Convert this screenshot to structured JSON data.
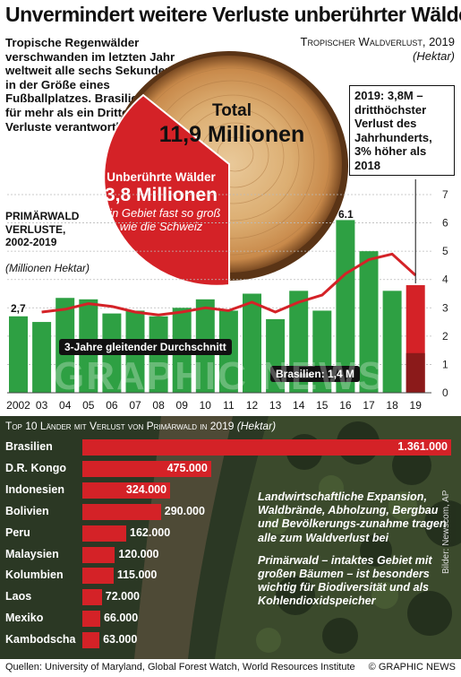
{
  "headline": "Unvermindert weitere Verluste unberührter Wälder",
  "intro": "Tropische Regenwälder verschwanden im letzten Jahr weltweit alle sechs Sekunden in der Größe eines Fußballplatzes. Brasilien war für mehr als ein Drittel der Verluste verantwortlich",
  "tropical_loss": {
    "title": "Tropischer Waldverlust, 2019",
    "unit": "(Hektar)",
    "total_label": "Total",
    "total_value": "11,9 Millionen",
    "primary_label": "Unberührte Wälder",
    "primary_value": "3,8 Millionen",
    "primary_note": "Ein Gebiet fast so groß wie die Schweiz"
  },
  "annotation_2019": "2019: 3,8M – dritthöchster Verlust des Jahrhunderts, 3% höher als 2018",
  "primary_loss_chart": {
    "title": "PRIMÄRWALD VERLUSTE, 2002-2019",
    "unit": "(Millionen Hektar)",
    "moving_avg_label": "3-Jahre gleitender Durchschnitt",
    "brazil_label": "Brasilien: 1,4 M",
    "first_value_label": "2,7",
    "peak_value_label": "6.1"
  },
  "chart_data": [
    {
      "type": "bar",
      "categories": [
        "2002",
        "03",
        "04",
        "05",
        "06",
        "07",
        "08",
        "09",
        "10",
        "11",
        "12",
        "13",
        "14",
        "15",
        "16",
        "17",
        "18",
        "19"
      ],
      "series": [
        {
          "name": "Primärwald Verluste",
          "values": [
            2.7,
            2.5,
            3.35,
            3.3,
            2.8,
            2.9,
            2.7,
            3.0,
            3.3,
            2.9,
            3.5,
            2.6,
            3.6,
            2.9,
            6.1,
            5.0,
            3.6,
            3.8
          ]
        },
        {
          "name": "3-Jahre gleitender Durchschnitt",
          "type": "line",
          "values": [
            null,
            2.85,
            2.95,
            3.15,
            3.05,
            2.85,
            2.75,
            2.85,
            3.0,
            2.9,
            3.2,
            2.85,
            3.2,
            3.45,
            4.2,
            4.7,
            4.9,
            4.15
          ]
        },
        {
          "name": "Brasilien",
          "values": [
            null,
            null,
            null,
            null,
            null,
            null,
            null,
            null,
            null,
            null,
            null,
            null,
            null,
            null,
            null,
            null,
            null,
            1.4
          ]
        }
      ],
      "ylim": [
        0,
        7
      ],
      "yticks": [
        "0",
        "1",
        "2",
        "3",
        "4",
        "5",
        "6",
        "7"
      ],
      "colors": {
        "bars": "#2ea043",
        "line": "#d42227",
        "highlight": "#d42227",
        "brazil": "#8b1a1a"
      }
    },
    {
      "type": "bar",
      "title": "Top 10 Länder mit Verlust von Primärwald in 2019",
      "unit": "(Hektar)",
      "categories": [
        "Brasilien",
        "D.R. Kongo",
        "Indonesien",
        "Bolivien",
        "Peru",
        "Malaysien",
        "Kolumbien",
        "Laos",
        "Mexiko",
        "Kambodscha"
      ],
      "values": [
        1361000,
        475000,
        324000,
        290000,
        162000,
        120000,
        115000,
        72000,
        66000,
        63000
      ],
      "value_labels": [
        "1.361.000",
        "475.000",
        "324.000",
        "290.000",
        "162.000",
        "120.000",
        "115.000",
        "72.000",
        "66.000",
        "63.000"
      ],
      "colors": {
        "bars": "#d42227"
      }
    }
  ],
  "info": [
    "Landwirtschaftliche Expansion, Waldbrände, Abholzung, Bergbau und Bevölkerungs-zunahme tragen alle zum Waldverlust bei",
    "Primärwald – intaktes Gebiet mit großen Bäumen – ist besonders wichtig für Biodiversität und als Kohlendioxidspeicher"
  ],
  "photo_credit": "Bilder: Newscom, AP",
  "sources": "Quellen: University of Maryland, Global Forest Watch, World Resources Institute",
  "copyright": "© GRAPHIC NEWS",
  "watermark": "GRAPHIC NEWS"
}
